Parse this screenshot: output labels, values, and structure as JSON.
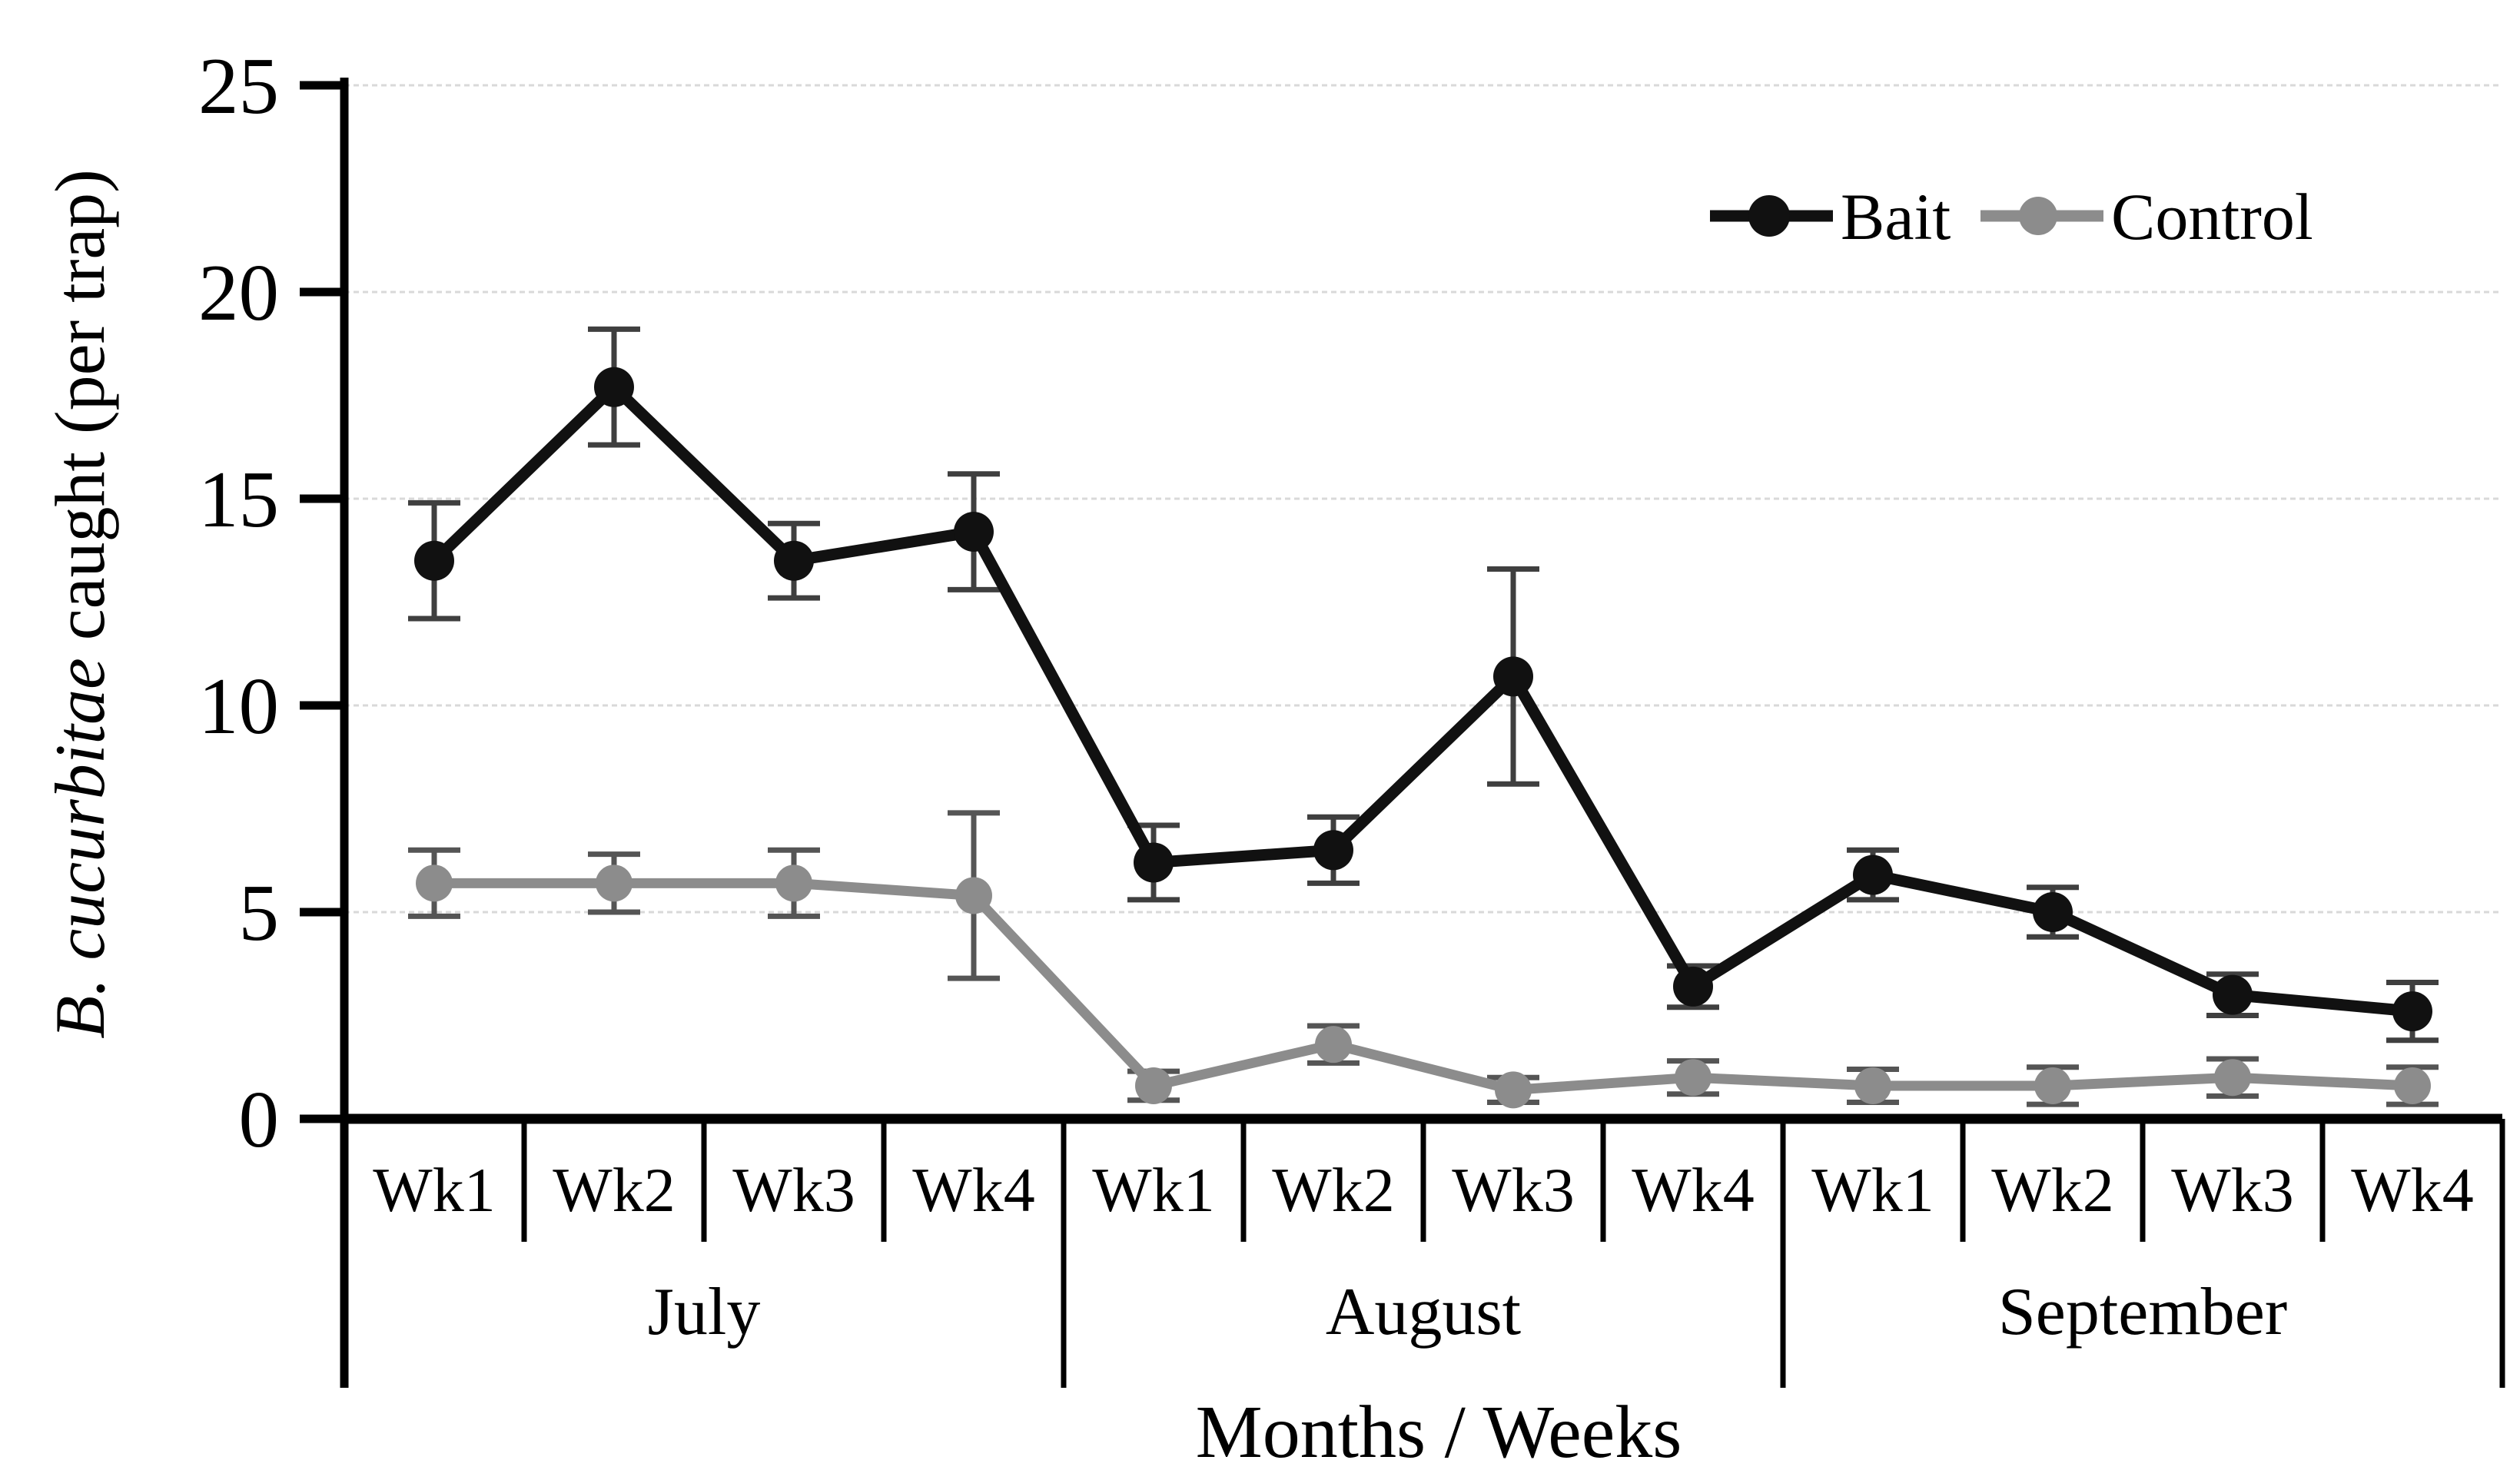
{
  "chart_data": {
    "type": "line",
    "title": "",
    "xlabel": "Months / Weeks",
    "ylabel_italic": "B. cucurbitae",
    "ylabel_rest": " caught (per trap)",
    "ylim": [
      0,
      25
    ],
    "yticks": [
      0,
      5,
      10,
      15,
      20,
      25
    ],
    "grid": "horizontal-light-dashed",
    "legend_position": "top-right-inside",
    "months": [
      {
        "label": "July",
        "weeks": [
          "Wk1",
          "Wk2",
          "Wk3",
          "Wk4"
        ]
      },
      {
        "label": "August",
        "weeks": [
          "Wk1",
          "Wk2",
          "Wk3",
          "Wk4"
        ]
      },
      {
        "label": "September",
        "weeks": [
          "Wk1",
          "Wk2",
          "Wk3",
          "Wk4"
        ]
      }
    ],
    "series": [
      {
        "name": "Bait",
        "color": "#111111",
        "error_color": "#3f3f3f",
        "marker": "circle",
        "values": [
          13.5,
          17.7,
          13.5,
          14.2,
          6.2,
          6.5,
          10.7,
          3.2,
          5.9,
          5.0,
          3.0,
          2.6
        ],
        "errors": [
          1.4,
          1.4,
          0.9,
          1.4,
          0.9,
          0.8,
          2.6,
          0.5,
          0.6,
          0.6,
          0.5,
          0.7
        ]
      },
      {
        "name": "Control",
        "color": "#8c8c8c",
        "error_color": "#555555",
        "marker": "circle",
        "values": [
          5.7,
          5.7,
          5.7,
          5.4,
          0.8,
          1.8,
          0.7,
          1.0,
          0.8,
          0.8,
          1.0,
          0.8
        ],
        "errors": [
          0.8,
          0.7,
          0.8,
          2.0,
          0.35,
          0.45,
          0.3,
          0.4,
          0.4,
          0.45,
          0.45,
          0.45
        ]
      }
    ]
  },
  "colors": {
    "background": "#ffffff",
    "gridline": "#d9d9d9",
    "axis": "#000000"
  }
}
